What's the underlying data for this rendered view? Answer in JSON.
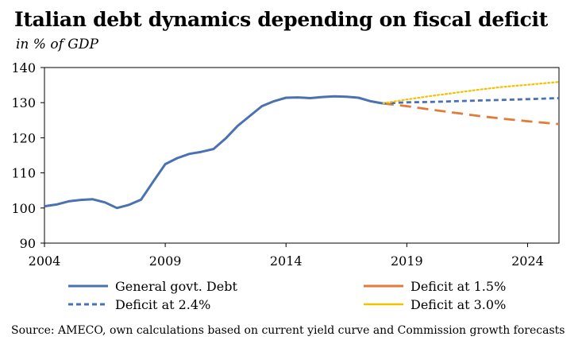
{
  "chart_data": {
    "type": "line",
    "title": "Italian debt dynamics depending on fiscal deficit",
    "subtitle": "in % of GDP",
    "xlabel": "",
    "ylabel": "",
    "xlim": [
      2004,
      2025.3
    ],
    "ylim": [
      90,
      140
    ],
    "x_ticks": [
      2004,
      2009,
      2014,
      2019,
      2024
    ],
    "y_ticks": [
      90,
      100,
      110,
      120,
      130,
      140
    ],
    "grid": false,
    "legend_position": "bottom",
    "source": "Source: AMECO, own calculations based on current yield curve and Commission growth forecasts",
    "series": [
      {
        "name": "General govt. Debt",
        "color": "#4a72b2",
        "style": "solid",
        "x": [
          2004,
          2004.5,
          2005,
          2005.5,
          2006,
          2006.5,
          2007,
          2007.5,
          2008,
          2008.5,
          2009,
          2009.5,
          2010,
          2010.5,
          2011,
          2011.5,
          2012,
          2012.5,
          2013,
          2013.5,
          2014,
          2014.5,
          2015,
          2015.5,
          2016,
          2016.5,
          2017,
          2017.5,
          2018
        ],
        "values": [
          100.5,
          101.0,
          101.9,
          102.3,
          102.5,
          101.6,
          100.0,
          100.9,
          102.4,
          107.5,
          112.5,
          114.2,
          115.4,
          116.0,
          116.8,
          119.8,
          123.4,
          126.2,
          129.0,
          130.4,
          131.4,
          131.5,
          131.3,
          131.6,
          131.8,
          131.7,
          131.4,
          130.4,
          129.8
        ]
      },
      {
        "name": "Deficit at 1.5%",
        "color": "#e07b39",
        "style": "long-dash",
        "x": [
          2018,
          2019,
          2020,
          2021,
          2022,
          2023,
          2024,
          2025.3
        ],
        "values": [
          129.8,
          129.0,
          128.0,
          127.1,
          126.2,
          125.4,
          124.7,
          123.9
        ]
      },
      {
        "name": "Deficit at 2.4%",
        "color": "#4a72b2",
        "style": "short-dash",
        "x": [
          2018,
          2019,
          2020,
          2021,
          2022,
          2023,
          2024,
          2025.3
        ],
        "values": [
          129.8,
          130.1,
          130.2,
          130.4,
          130.6,
          130.8,
          131.0,
          131.3
        ]
      },
      {
        "name": "Deficit at 3.0%",
        "color": "#f2c200",
        "style": "dotted",
        "x": [
          2018,
          2019,
          2020,
          2021,
          2022,
          2023,
          2024,
          2025.3
        ],
        "values": [
          129.8,
          130.9,
          131.9,
          132.8,
          133.7,
          134.5,
          135.1,
          135.9
        ]
      }
    ]
  }
}
